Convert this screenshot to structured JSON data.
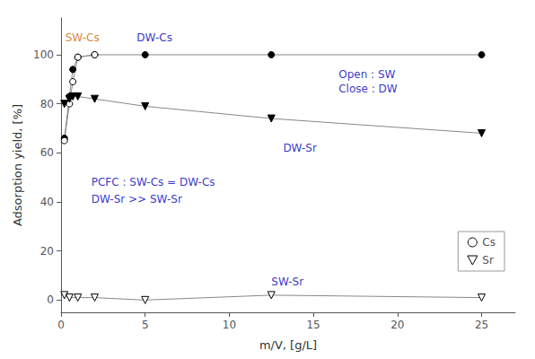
{
  "chart_data": {
    "type": "line",
    "xlabel": "m/V, [g/L]",
    "ylabel": "Adsorption yield, [%]",
    "xlim": [
      0,
      27
    ],
    "ylim": [
      -5,
      115
    ],
    "xticks": [
      0,
      5,
      10,
      15,
      20,
      25
    ],
    "yticks": [
      0,
      20,
      40,
      60,
      80,
      100
    ],
    "grid": false,
    "legend": "lower right",
    "series": [
      {
        "name": "Cs",
        "x": [
          0.2,
          0.5,
          0.7,
          1.0,
          2.0,
          5.0,
          12.5,
          25.0
        ],
        "values": [
          66,
          83,
          94,
          99,
          100,
          100,
          100,
          100
        ],
        "color": "#888888",
        "marker": "filled_circle"
      },
      {
        "name": "Cs",
        "x": [
          0.2,
          0.5,
          0.7,
          1.0,
          2.0
        ],
        "values": [
          65,
          80,
          89,
          99,
          100
        ],
        "color": "#888888",
        "marker": "open_circle"
      },
      {
        "name": "Sr",
        "x": [
          0.2,
          0.5,
          0.7,
          1.0,
          2.0,
          5.0,
          12.5,
          25.0
        ],
        "values": [
          80,
          82,
          83,
          83,
          82,
          79,
          74,
          68
        ],
        "color": "#888888",
        "marker": "filled_triangle_down"
      },
      {
        "name": "Sr",
        "x": [
          0.2,
          0.5,
          1.0,
          2.0,
          5.0,
          12.5,
          25.0
        ],
        "values": [
          2,
          1,
          1,
          1,
          0,
          2,
          1
        ],
        "color": "#888888",
        "marker": "open_triangle_down"
      }
    ],
    "annotations": [
      {
        "text": "SW-Cs",
        "x": 0.25,
        "y": 107,
        "color": "#CC6600"
      },
      {
        "text": "DW-Cs",
        "x": 4.5,
        "y": 107,
        "color": "#0000BB"
      },
      {
        "text": "DW-Sr",
        "x": 13.2,
        "y": 62,
        "color": "#0000BB"
      },
      {
        "text": "SW-Sr",
        "x": 12.5,
        "y": 7.5,
        "color": "#0000BB"
      },
      {
        "text": "Open : SW",
        "x": 16.5,
        "y": 92,
        "color": "#0000BB"
      },
      {
        "text": "Close : DW",
        "x": 16.5,
        "y": 86,
        "color": "#0000BB"
      },
      {
        "text": "PCFC : SW-Cs = DW-Cs",
        "x": 1.8,
        "y": 48,
        "color": "#0000BB"
      },
      {
        "text": "DW-Sr >> SW-Sr",
        "x": 1.8,
        "y": 41,
        "color": "#0000BB"
      }
    ]
  }
}
